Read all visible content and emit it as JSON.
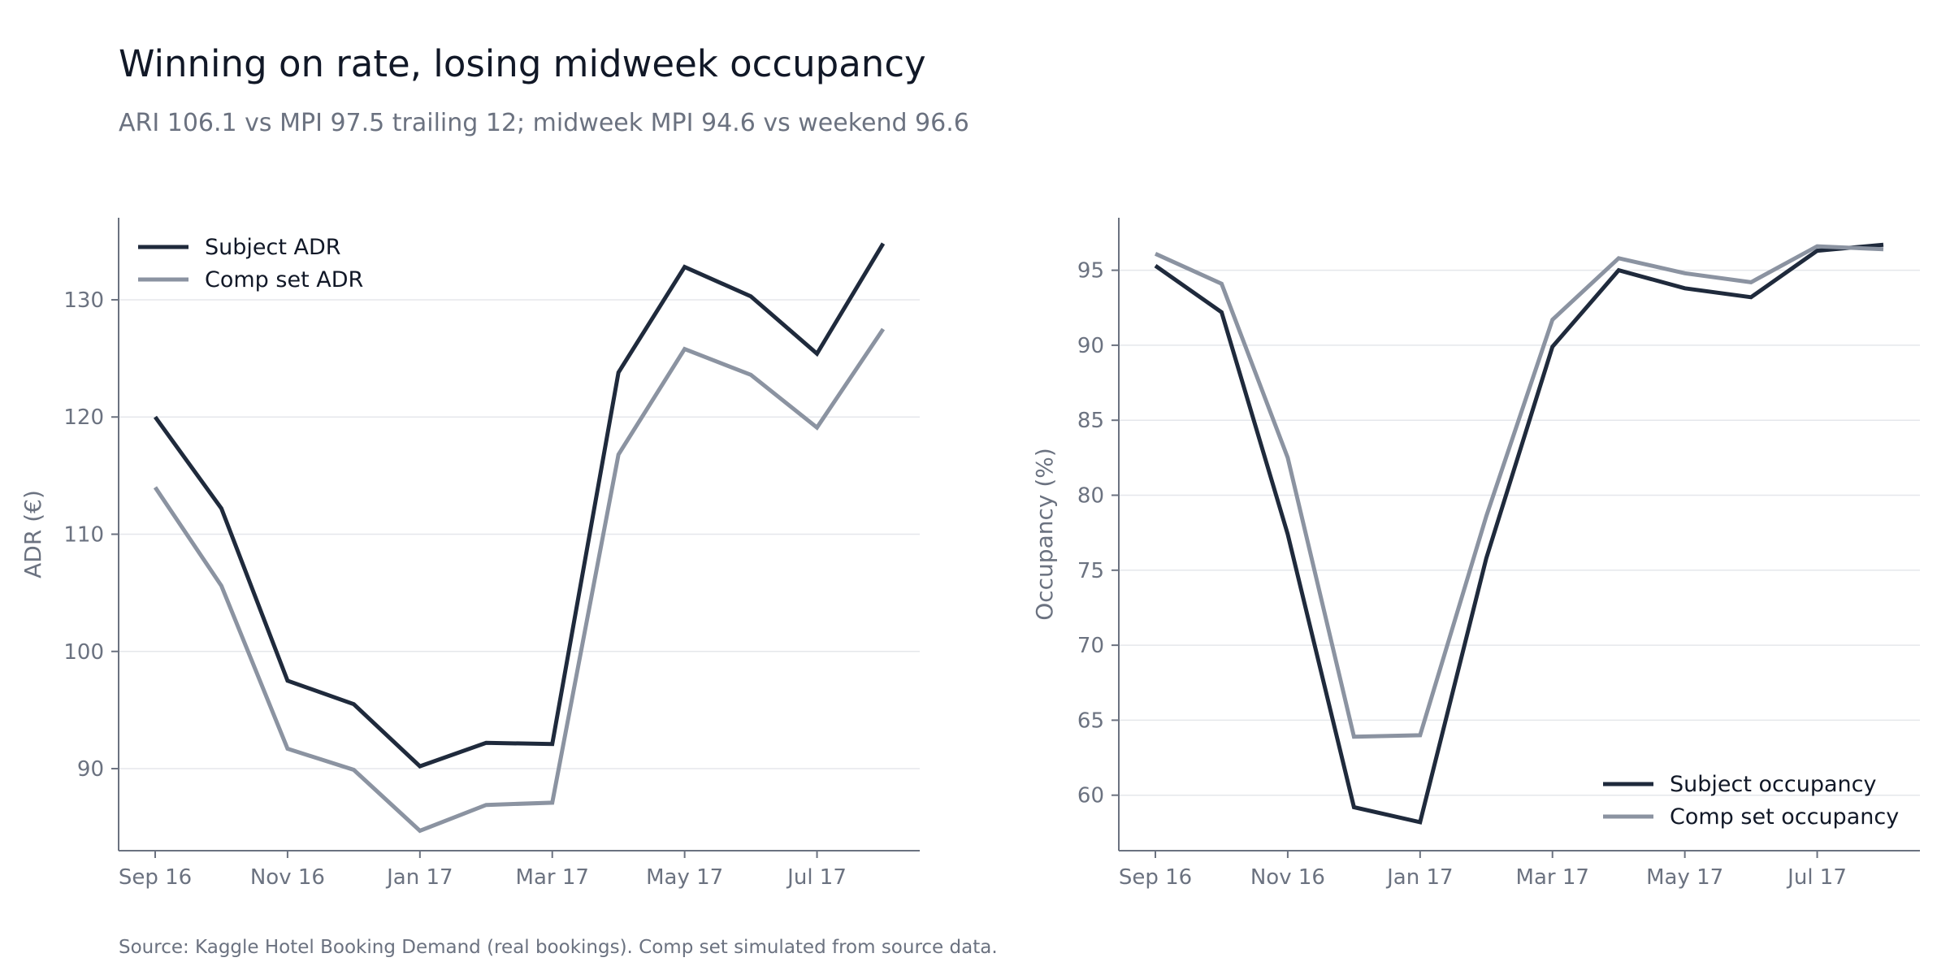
{
  "header": {
    "title": "Winning on rate, losing midweek occupancy",
    "subtitle": "ARI 106.1 vs MPI 97.5 trailing 12; midweek MPI 94.6 vs weekend 96.6"
  },
  "footer": {
    "source": "Source: Kaggle Hotel Booking Demand (real bookings). Comp set simulated from source data."
  },
  "colors": {
    "subject": "#1f2a3c",
    "comp": "#8b93a1",
    "grid": "#e5e7eb",
    "axis": "#6b7280",
    "tick_text": "#6b7280"
  },
  "chart_data": [
    {
      "type": "line",
      "ylabel": "ADR (€)",
      "xlabel": "",
      "x": [
        "Sep 16",
        "Oct 16",
        "Nov 16",
        "Dec 16",
        "Jan 17",
        "Feb 17",
        "Mar 17",
        "Apr 17",
        "May 17",
        "Jun 17",
        "Jul 17",
        "Aug 17"
      ],
      "xtick_labels": [
        "Sep 16",
        "Nov 16",
        "Jan 17",
        "Mar 17",
        "May 17",
        "Jul 17"
      ],
      "ylim": [
        83,
        137
      ],
      "yticks": [
        90,
        100,
        110,
        120,
        130
      ],
      "grid": true,
      "legend_position": "top-left",
      "series": [
        {
          "name": "Subject ADR",
          "color_key": "subject",
          "values": [
            120.0,
            112.2,
            97.5,
            95.5,
            90.2,
            92.2,
            92.1,
            123.8,
            132.8,
            130.3,
            125.4,
            134.8
          ]
        },
        {
          "name": "Comp set ADR",
          "color_key": "comp",
          "values": [
            114.0,
            105.6,
            91.7,
            89.9,
            84.7,
            86.9,
            87.1,
            116.8,
            125.8,
            123.6,
            119.1,
            127.5
          ]
        }
      ]
    },
    {
      "type": "line",
      "ylabel": "Occupancy (%)",
      "xlabel": "",
      "x": [
        "Sep 16",
        "Oct 16",
        "Nov 16",
        "Dec 16",
        "Jan 17",
        "Feb 17",
        "Mar 17",
        "Apr 17",
        "May 17",
        "Jun 17",
        "Jul 17",
        "Aug 17"
      ],
      "xtick_labels": [
        "Sep 16",
        "Nov 16",
        "Jan 17",
        "Mar 17",
        "May 17",
        "Jul 17"
      ],
      "ylim": [
        56.3,
        98.5
      ],
      "yticks": [
        60,
        65,
        70,
        75,
        80,
        85,
        90,
        95
      ],
      "grid": true,
      "legend_position": "bottom-right",
      "series": [
        {
          "name": "Subject occupancy",
          "color_key": "subject",
          "values": [
            95.3,
            92.2,
            77.4,
            59.2,
            58.2,
            75.8,
            89.9,
            95.0,
            93.8,
            93.2,
            96.3,
            96.7
          ]
        },
        {
          "name": "Comp set occupancy",
          "color_key": "comp",
          "values": [
            96.1,
            94.1,
            82.5,
            63.9,
            64.0,
            78.6,
            91.7,
            95.8,
            94.8,
            94.2,
            96.6,
            96.4
          ]
        }
      ]
    }
  ]
}
